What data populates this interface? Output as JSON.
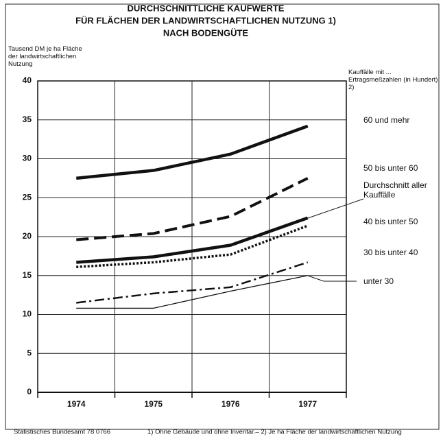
{
  "chart_data": {
    "type": "line",
    "title": [
      "DURCHSCHNITTLICHE KAUFWERTE",
      "FÜR FLÄCHEN DER LANDWIRTSCHAFTLICHEN NUTZUNG 1)",
      "NACH BODENGÜTE"
    ],
    "y_label": "Tausend DM je ha Fläche der landwirtschaftlichen Nutzung",
    "legend_title": "Kauffälle mit ... Ertragsmeßzahlen (in Hundert) 2)",
    "categories": [
      "1974",
      "1975",
      "1976",
      "1977"
    ],
    "series": [
      {
        "name": "60 und mehr",
        "color": "#111111",
        "style": "solid",
        "linewidth": 4.5,
        "values": [
          27.5,
          28.5,
          30.6,
          34.2
        ]
      },
      {
        "name": "50 bis unter 60",
        "color": "#111111",
        "style": "dashed",
        "linewidth": 4,
        "values": [
          19.6,
          20.4,
          22.6,
          27.5
        ]
      },
      {
        "name": "Durchschnitt aller Kauffälle",
        "color": "#111111",
        "style": "solid",
        "linewidth": 4.5,
        "values": [
          16.7,
          17.4,
          18.9,
          22.4
        ]
      },
      {
        "name": "40 bis unter 50",
        "color": "#111111",
        "style": "dotted",
        "linewidth": 3.5,
        "values": [
          16.1,
          16.7,
          17.7,
          21.4
        ]
      },
      {
        "name": "30 bis unter 40",
        "color": "#111111",
        "style": "dashdot",
        "linewidth": 2.5,
        "values": [
          11.5,
          12.7,
          13.5,
          16.7
        ]
      },
      {
        "name": "unter 30",
        "color": "#111111",
        "style": "solid",
        "linewidth": 1.3,
        "values": [
          10.8,
          10.8,
          13.0,
          15.0
        ]
      }
    ],
    "ylim": [
      0,
      40
    ],
    "yticks": [
      0,
      5,
      10,
      15,
      20,
      25,
      30,
      35,
      40
    ],
    "grid": true,
    "source": "Statistisches Bundesamt 78 0766",
    "footnote": "1) Ohne Gebäude und ohne Inventar.– 2) Je ha Fläche der landwirtschaftlichen Nutzung"
  }
}
